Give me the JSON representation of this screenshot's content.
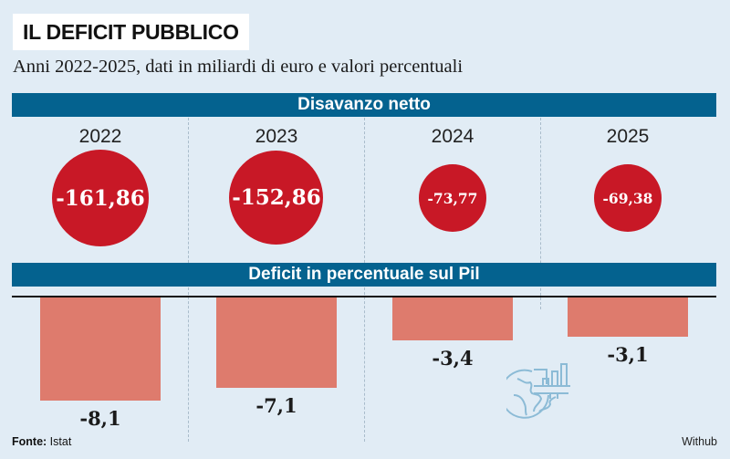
{
  "header": {
    "title": "IL DEFICIT PUBBLICO",
    "subtitle": "Anni 2022-2025, dati in miliardi di euro e valori percentuali"
  },
  "colors": {
    "background": "#e1ecf5",
    "banner": "#04628f",
    "bubble": "#c81826",
    "bar": "#de7b6d"
  },
  "chart_data": [
    {
      "type": "bubble",
      "title": "Disavanzo netto",
      "unit": "miliardi di euro",
      "categories": [
        "2022",
        "2023",
        "2024",
        "2025"
      ],
      "values": [
        -161.86,
        -152.86,
        -73.77,
        -69.38
      ],
      "labels": [
        "-161,86",
        "-152,86",
        "-73,77",
        "-69,38"
      ]
    },
    {
      "type": "bar",
      "title": "Deficit in percentuale sul Pil",
      "unit": "%",
      "categories": [
        "2022",
        "2023",
        "2024",
        "2025"
      ],
      "values": [
        -8.1,
        -7.1,
        -3.4,
        -3.1
      ],
      "labels": [
        "-8,1",
        "-7,1",
        "-3,4",
        "-3,1"
      ],
      "ylim": [
        -8.1,
        0
      ]
    }
  ],
  "footer": {
    "source_label": "Fonte:",
    "source_value": "Istat",
    "credit": "Withub"
  },
  "icons": {
    "watermark": "globe-chart-icon"
  }
}
